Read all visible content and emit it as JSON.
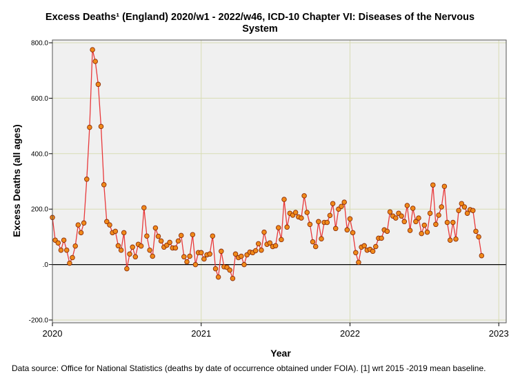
{
  "title_lines": [
    "Excess Deaths¹ (England) 2020/w1 - 2022/w46, ICD-10 Chapter VI: Diseases of the Nervous",
    "System"
  ],
  "footnote": "Data source: Office for National Statistics (deaths by date of occurrence obtained under FOIA). [1] wrt 2015 -2019 mean baseline.",
  "colors": {
    "plot_bg": "#f0f0f0",
    "grid": "#d8dcb4",
    "line": "#e8383a",
    "marker_fill": "#f08a1a",
    "marker_stroke": "#8a2a06",
    "zero_line": "#000000"
  },
  "chart_data": {
    "type": "line",
    "title": "Excess Deaths¹ (England) 2020/w1 - 2022/w46, ICD-10 Chapter VI: Diseases of the Nervous System",
    "xlabel": "Year",
    "ylabel": "Excess Deaths (all ages)",
    "xlim": [
      2020.0,
      2023.05
    ],
    "ylim": [
      -210,
      810
    ],
    "x_ticks": [
      2020,
      2021,
      2022,
      2023
    ],
    "x_tick_labels": [
      "2020",
      "2021",
      "2022",
      "2023"
    ],
    "y_ticks": [
      -200,
      0,
      200,
      400,
      600,
      800
    ],
    "y_tick_labels": [
      "-200.0",
      ".0",
      "200.0",
      "400.0",
      "600.0",
      "800.0"
    ],
    "reference_line": 0,
    "grid": true,
    "x_start_year": 2020,
    "x_step_per_week": 0.01923,
    "series": [
      {
        "name": "Excess deaths",
        "values": [
          170,
          88,
          78,
          52,
          88,
          52,
          5,
          25,
          67,
          143,
          115,
          150,
          308,
          495,
          775,
          733,
          650,
          498,
          288,
          155,
          143,
          115,
          120,
          68,
          52,
          115,
          -15,
          38,
          63,
          28,
          73,
          67,
          205,
          103,
          52,
          30,
          132,
          102,
          85,
          63,
          70,
          80,
          60,
          60,
          85,
          105,
          28,
          10,
          30,
          108,
          0,
          43,
          43,
          20,
          35,
          38,
          103,
          -15,
          -45,
          48,
          -8,
          -10,
          -20,
          -50,
          38,
          25,
          30,
          0,
          35,
          45,
          43,
          50,
          75,
          52,
          117,
          73,
          78,
          65,
          68,
          133,
          90,
          235,
          135,
          185,
          178,
          188,
          172,
          168,
          248,
          188,
          145,
          82,
          65,
          155,
          93,
          152,
          152,
          177,
          220,
          130,
          200,
          210,
          225,
          125,
          165,
          115,
          43,
          8,
          63,
          68,
          52,
          55,
          48,
          65,
          95,
          95,
          125,
          120,
          190,
          175,
          168,
          185,
          175,
          155,
          213,
          123,
          203,
          155,
          168,
          112,
          142,
          117,
          185,
          287,
          145,
          178,
          208,
          282,
          152,
          88,
          152,
          92,
          195,
          220,
          208,
          185,
          198,
          195,
          120,
          100,
          32
        ]
      }
    ]
  }
}
